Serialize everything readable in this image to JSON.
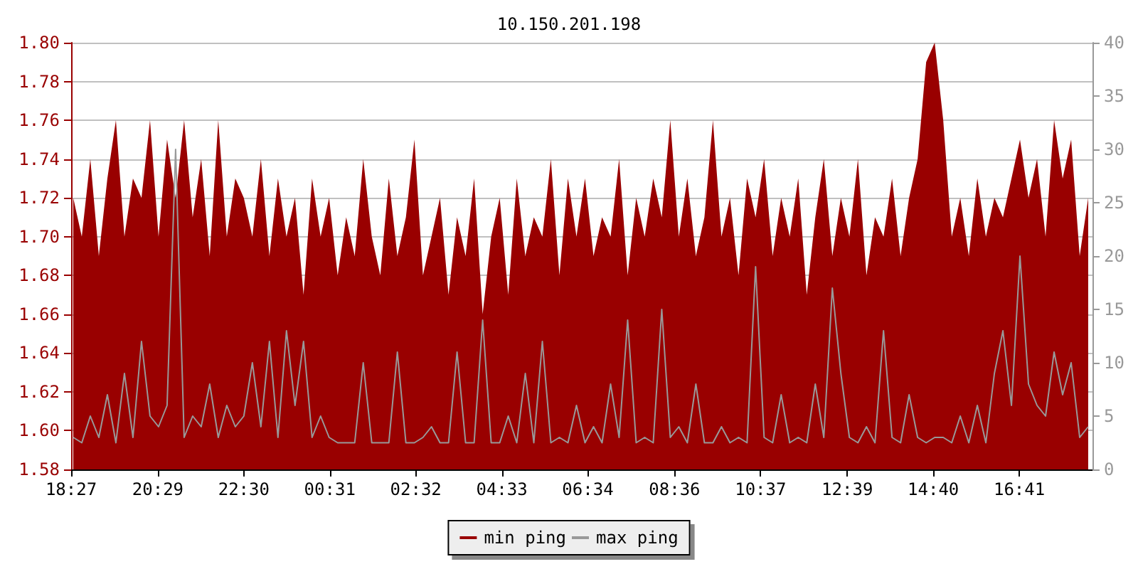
{
  "chart_data": {
    "type": "area",
    "title": "10.150.201.198",
    "x": [
      "--01-01T18:30",
      "--01-01T18:42",
      "--01-01T18:54",
      "--01-01T19:06",
      "--01-01T19:18",
      "--01-01T19:30",
      "--01-01T19:42",
      "--01-01T19:54",
      "--01-01T20:06",
      "--01-01T20:18",
      "--01-01T20:30",
      "--01-01T20:42",
      "--01-01T20:54",
      "--01-01T21:06",
      "--01-01T21:18",
      "--01-01T21:30",
      "--01-01T21:42",
      "--01-01T21:54",
      "--01-01T22:06",
      "--01-01T22:18",
      "--01-01T22:30",
      "--01-01T22:42",
      "--01-01T22:54",
      "--01-01T23:06",
      "--01-01T23:18",
      "--01-01T23:30",
      "--01-01T23:42",
      "--01-01T23:54",
      "--01-02T00:06",
      "--01-02T00:18",
      "--01-02T00:30",
      "--01-02T00:42",
      "--01-02T00:54",
      "--01-02T01:06",
      "--01-02T01:18",
      "--01-02T01:30",
      "--01-02T01:42",
      "--01-02T01:54",
      "--01-02T02:06",
      "--01-02T02:18",
      "--01-02T02:30",
      "--01-02T02:42",
      "--01-02T02:54",
      "--01-02T03:06",
      "--01-02T03:18",
      "--01-02T03:30",
      "--01-02T03:42",
      "--01-02T03:54",
      "--01-02T04:06",
      "--01-02T04:18",
      "--01-02T04:30",
      "--01-02T04:42",
      "--01-02T04:54",
      "--01-02T05:06",
      "--01-02T05:18",
      "--01-02T05:30",
      "--01-02T05:42",
      "--01-02T05:54",
      "--01-02T06:06",
      "--01-02T06:18",
      "--01-02T06:30",
      "--01-02T06:42",
      "--01-02T06:54",
      "--01-02T07:06",
      "--01-02T07:18",
      "--01-02T07:30",
      "--01-02T07:42",
      "--01-02T07:54",
      "--01-02T08:06",
      "--01-02T08:18",
      "--01-02T08:30",
      "--01-02T08:42",
      "--01-02T08:54",
      "--01-02T09:06",
      "--01-02T09:18",
      "--01-02T09:30",
      "--01-02T09:42",
      "--01-02T09:54",
      "--01-02T10:06",
      "--01-02T10:18",
      "--01-02T10:30",
      "--01-02T10:42",
      "--01-02T10:54",
      "--01-02T11:06",
      "--01-02T11:18",
      "--01-02T11:30",
      "--01-02T11:42",
      "--01-02T11:54",
      "--01-02T12:06",
      "--01-02T12:18",
      "--01-02T12:30",
      "--01-02T12:42",
      "--01-02T12:54",
      "--01-02T13:06",
      "--01-02T13:18",
      "--01-02T13:30",
      "--01-02T13:42",
      "--01-02T13:54",
      "--01-02T14:06",
      "--01-02T14:18",
      "--01-02T14:30",
      "--01-02T14:42",
      "--01-02T14:54",
      "--01-02T15:06",
      "--01-02T15:18",
      "--01-02T15:30",
      "--01-02T15:42",
      "--01-02T15:54",
      "--01-02T16:06",
      "--01-02T16:18",
      "--01-02T16:30",
      "--01-02T16:42",
      "--01-02T16:54",
      "--01-02T17:06",
      "--01-02T17:18",
      "--01-02T17:30",
      "--01-02T17:42",
      "--01-02T17:54",
      "--01-02T18:06",
      "--01-02T18:18"
    ],
    "series": [
      {
        "name": "min ping",
        "color": "#990000",
        "values": [
          1.72,
          1.7,
          1.74,
          1.69,
          1.73,
          1.76,
          1.7,
          1.73,
          1.72,
          1.76,
          1.7,
          1.75,
          1.72,
          1.76,
          1.71,
          1.74,
          1.69,
          1.76,
          1.7,
          1.73,
          1.72,
          1.7,
          1.74,
          1.69,
          1.73,
          1.7,
          1.72,
          1.67,
          1.73,
          1.7,
          1.72,
          1.68,
          1.71,
          1.69,
          1.74,
          1.7,
          1.68,
          1.73,
          1.69,
          1.71,
          1.75,
          1.68,
          1.7,
          1.72,
          1.67,
          1.71,
          1.69,
          1.73,
          1.66,
          1.7,
          1.72,
          1.67,
          1.73,
          1.69,
          1.71,
          1.7,
          1.74,
          1.68,
          1.73,
          1.7,
          1.73,
          1.69,
          1.71,
          1.7,
          1.74,
          1.68,
          1.72,
          1.7,
          1.73,
          1.71,
          1.76,
          1.7,
          1.73,
          1.69,
          1.71,
          1.76,
          1.7,
          1.72,
          1.68,
          1.73,
          1.71,
          1.74,
          1.69,
          1.72,
          1.7,
          1.73,
          1.67,
          1.71,
          1.74,
          1.69,
          1.72,
          1.7,
          1.74,
          1.68,
          1.71,
          1.7,
          1.73,
          1.69,
          1.72,
          1.74,
          1.79,
          1.8,
          1.76,
          1.7,
          1.72,
          1.69,
          1.73,
          1.7,
          1.72,
          1.71,
          1.73,
          1.75,
          1.72,
          1.74,
          1.7,
          1.76,
          1.73,
          1.75,
          1.69,
          1.72
        ]
      },
      {
        "name": "max ping",
        "type": "line",
        "axis": "y2",
        "color": "#999999",
        "values": [
          3,
          2.5,
          5,
          3,
          7,
          2.5,
          9,
          3,
          12,
          5,
          4,
          6,
          30,
          3,
          5,
          4,
          8,
          3,
          6,
          4,
          5,
          10,
          4,
          12,
          3,
          13,
          6,
          12,
          3,
          5,
          3,
          2.5,
          2.5,
          2.5,
          10,
          2.5,
          2.5,
          2.5,
          11,
          2.5,
          2.5,
          3,
          4,
          2.5,
          2.5,
          11,
          2.5,
          2.5,
          14,
          2.5,
          2.5,
          5,
          2.5,
          9,
          2.5,
          12,
          2.5,
          3,
          2.5,
          6,
          2.5,
          4,
          2.5,
          8,
          3,
          14,
          2.5,
          3,
          2.5,
          15,
          3,
          4,
          2.5,
          8,
          2.5,
          2.5,
          4,
          2.5,
          3,
          2.5,
          19,
          3,
          2.5,
          7,
          2.5,
          3,
          2.5,
          8,
          3,
          17,
          9,
          3,
          2.5,
          4,
          2.5,
          13,
          3,
          2.5,
          7,
          3,
          2.5,
          3,
          3,
          2.5,
          5,
          2.5,
          6,
          2.5,
          9,
          13,
          6,
          20,
          8,
          6,
          5,
          11,
          7,
          10,
          3,
          4
        ]
      }
    ],
    "xlim": [
      "--01-01T18:27",
      "--01-02T18:24"
    ],
    "xticks": [
      {
        "value": "--01-01T18:27",
        "label": "18:27"
      },
      {
        "value": "--01-01T20:29",
        "label": "20:29"
      },
      {
        "value": "--01-01T22:30",
        "label": "22:30"
      },
      {
        "value": "--01-02T00:31",
        "label": "00:31"
      },
      {
        "value": "--01-02T02:32",
        "label": "02:32"
      },
      {
        "value": "--01-02T04:33",
        "label": "04:33"
      },
      {
        "value": "--01-02T06:34",
        "label": "06:34"
      },
      {
        "value": "--01-02T08:36",
        "label": "08:36"
      },
      {
        "value": "--01-02T10:37",
        "label": "10:37"
      },
      {
        "value": "--01-02T12:39",
        "label": "12:39"
      },
      {
        "value": "--01-02T14:40",
        "label": "14:40"
      },
      {
        "value": "--01-02T16:41",
        "label": "16:41"
      }
    ],
    "ylim": [
      1.58,
      1.8
    ],
    "yticks": [
      {
        "value": 1.58,
        "label": "1.58"
      },
      {
        "value": 1.6,
        "label": "1.60"
      },
      {
        "value": 1.62,
        "label": "1.62"
      },
      {
        "value": 1.64,
        "label": "1.64"
      },
      {
        "value": 1.66,
        "label": "1.66"
      },
      {
        "value": 1.68,
        "label": "1.68"
      },
      {
        "value": 1.7,
        "label": "1.70"
      },
      {
        "value": 1.72,
        "label": "1.72"
      },
      {
        "value": 1.74,
        "label": "1.74"
      },
      {
        "value": 1.76,
        "label": "1.76"
      },
      {
        "value": 1.78,
        "label": "1.78"
      },
      {
        "value": 1.8,
        "label": "1.80"
      }
    ],
    "y2lim": [
      0,
      40
    ],
    "y2ticks": [
      0,
      5,
      10,
      15,
      20,
      25,
      30,
      35,
      40
    ],
    "grid": "y",
    "legend": "bottom",
    "marker": "none"
  }
}
